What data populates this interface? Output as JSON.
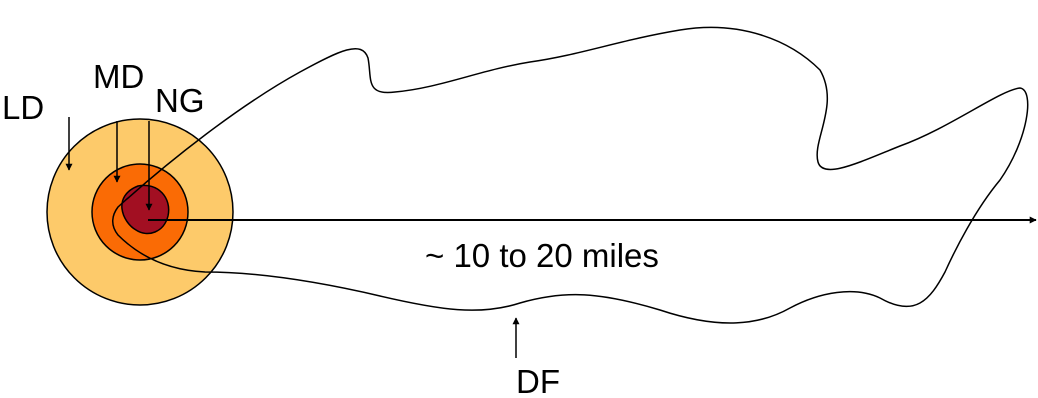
{
  "labels": {
    "ld": "LD",
    "md": "MD",
    "ng": "NG",
    "df": "DF",
    "distance": "~ 10 to 20 miles"
  },
  "colors": {
    "outer_ring": "#fdca6a",
    "middle_ring": "#fa6b05",
    "inner_core": "#a20f22",
    "stroke": "#000000",
    "background": "#ffffff"
  }
}
